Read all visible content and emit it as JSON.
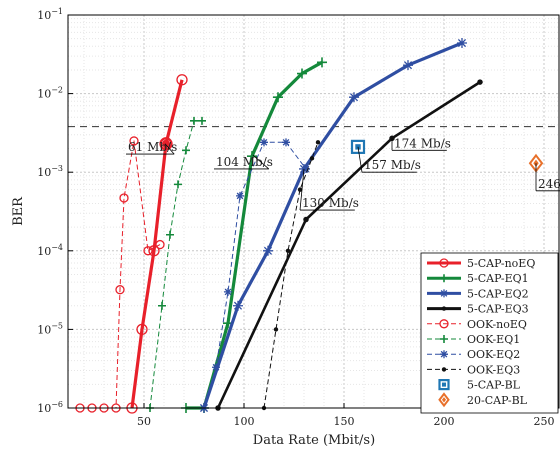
{
  "chart_data": {
    "type": "line",
    "xlabel": "Data Rate (Mbit/s)",
    "ylabel": "BER",
    "x_scale": "linear",
    "y_scale": "log",
    "xlim": [
      12,
      258
    ],
    "ylim": [
      1e-06,
      0.1
    ],
    "x_ticks": [
      50,
      100,
      150,
      200,
      250
    ],
    "y_ticks": [
      {
        "v": 1e-06,
        "m": "-6"
      },
      {
        "v": 1e-05,
        "m": "-5"
      },
      {
        "v": 0.0001,
        "m": "-4"
      },
      {
        "v": 0.001,
        "m": "-3"
      },
      {
        "v": 0.01,
        "m": "-2"
      },
      {
        "v": 0.1,
        "m": "-1"
      }
    ],
    "grid": true,
    "threshold": 0.0038,
    "legend_position": "lower-right",
    "series": [
      {
        "name": "5-CAP-noEQ",
        "style": "solid",
        "color": "#e8202a",
        "width": 3.2,
        "marker": "circle-open",
        "x": [
          44,
          49,
          55,
          61,
          69
        ],
        "y": [
          1e-06,
          1e-05,
          0.0001,
          0.0023,
          0.015
        ]
      },
      {
        "name": "5-CAP-EQ1",
        "style": "solid",
        "color": "#14893b",
        "width": 3.2,
        "marker": "plus",
        "x": [
          71,
          80,
          92,
          104,
          117,
          129,
          139
        ],
        "y": [
          1e-06,
          1e-06,
          1.2e-05,
          0.0016,
          0.009,
          0.018,
          0.025
        ]
      },
      {
        "name": "5-CAP-EQ2",
        "style": "solid",
        "color": "#2f4ea2",
        "width": 3.2,
        "marker": "star",
        "x": [
          80,
          97,
          112,
          130,
          155,
          182,
          209
        ],
        "y": [
          1e-06,
          2e-05,
          0.0001,
          0.0011,
          0.009,
          0.023,
          0.044
        ]
      },
      {
        "name": "5-CAP-EQ3",
        "style": "solid",
        "color": "#111111",
        "width": 2.6,
        "marker": "dot",
        "x": [
          87,
          131,
          174,
          218
        ],
        "y": [
          1e-06,
          0.00025,
          0.0027,
          0.014
        ]
      },
      {
        "name": "OOK-noEQ",
        "style": "dashed",
        "color": "#e8202a",
        "width": 1,
        "marker": "circle-open",
        "x": [
          18,
          24,
          30,
          36,
          38,
          40,
          45,
          52,
          58
        ],
        "y": [
          1e-06,
          1e-06,
          1e-06,
          1e-06,
          3.2e-05,
          0.00047,
          0.0025,
          0.0001,
          0.00012
        ],
        "points": [
          [
            18,
            1e-06
          ],
          [
            27,
            1e-06
          ],
          [
            36,
            1e-06
          ],
          [
            35,
            3.1e-05
          ],
          [
            38,
            0.00047
          ],
          [
            42,
            0.0025
          ],
          [
            52,
            0.00012
          ]
        ]
      },
      {
        "name": "OOK-EQ1",
        "style": "dashed",
        "color": "#14893b",
        "width": 1,
        "marker": "plus",
        "x": [
          53,
          59,
          63,
          67,
          71,
          75,
          79
        ],
        "y": [
          1e-06,
          2e-05,
          0.00016,
          0.0007,
          0.0019,
          0.0045,
          0.0045
        ]
      },
      {
        "name": "OOK-EQ2",
        "style": "dashed",
        "color": "#2f4ea2",
        "width": 1,
        "marker": "star",
        "x": [
          80,
          86,
          92,
          98,
          110,
          121,
          131
        ],
        "y": [
          1e-06,
          3.3e-06,
          3e-05,
          0.0005,
          0.0024,
          0.0024,
          0.0011
        ]
      },
      {
        "name": "OOK-EQ3",
        "style": "dashed",
        "color": "#111111",
        "width": 1,
        "marker": "dot",
        "x": [
          110,
          116,
          122,
          128,
          134,
          137
        ],
        "y": [
          1e-06,
          1e-05,
          0.0001,
          0.0006,
          0.0015,
          0.0024
        ]
      },
      {
        "name": "5-CAP-BL",
        "style": "none",
        "color": "#1f77b4",
        "marker": "square",
        "x": [
          157
        ],
        "y": [
          0.0021
        ]
      },
      {
        "name": "20-CAP-BL",
        "style": "none",
        "color": "#e8702a",
        "marker": "diamond",
        "x": [
          246
        ],
        "y": [
          0.0013
        ]
      }
    ],
    "annotations": [
      {
        "text": "61 Mb/s",
        "x": 60.5,
        "y": 0.0023,
        "lx": 41,
        "ly": 0.0017
      },
      {
        "text": "104 Mb/s",
        "x": 104.5,
        "y": 0.00165,
        "lx": 85,
        "ly": 0.0011
      },
      {
        "text": "174 Mb/s",
        "x": 174,
        "y": 0.0027,
        "lx": 174,
        "ly": 0.0019
      },
      {
        "text": "157 Mb/s",
        "x": 157,
        "y": 0.0021,
        "lx": 159,
        "ly": 0.001
      },
      {
        "text": "130 Mb/s",
        "x": 130,
        "y": 0.0011,
        "lx": 128,
        "ly": 0.00033
      },
      {
        "text": "246 Mb/s",
        "x": 246,
        "y": 0.0013,
        "lx": 246,
        "ly": 0.00058
      }
    ]
  }
}
